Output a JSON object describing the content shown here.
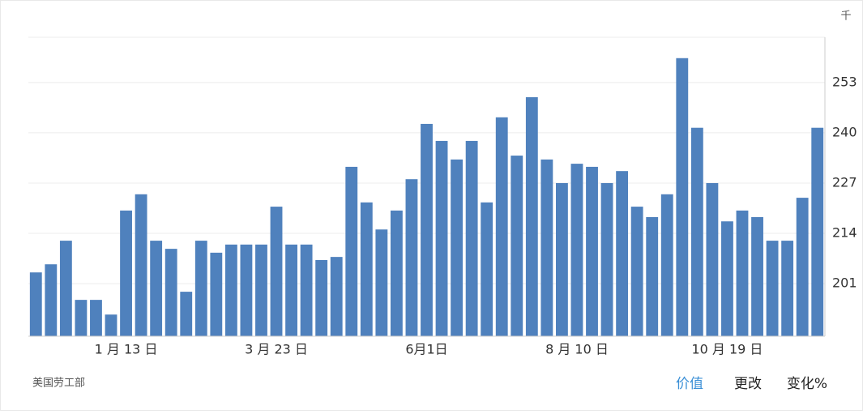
{
  "chart_data": {
    "type": "bar",
    "unit": "千",
    "source": "美国劳工部",
    "tabs": [
      "价值",
      "更改",
      "变化%"
    ],
    "color": "#4f81bd",
    "categories": [
      null,
      null,
      null,
      null,
      null,
      null,
      "1 月 13 日",
      null,
      null,
      null,
      null,
      null,
      null,
      null,
      null,
      null,
      "3 月 23 日",
      null,
      null,
      null,
      null,
      null,
      null,
      null,
      null,
      null,
      "6月1日",
      null,
      null,
      null,
      null,
      null,
      null,
      null,
      null,
      null,
      "8 月 10 日",
      null,
      null,
      null,
      null,
      null,
      null,
      null,
      null,
      null,
      "10 月 19 日",
      null,
      null,
      null,
      null,
      null,
      null
    ],
    "values": [
      203.9,
      206.0,
      212.1,
      196.8,
      196.8,
      193.0,
      219.9,
      224.1,
      212.1,
      210.0,
      198.9,
      212.1,
      209.0,
      211.1,
      211.1,
      211.1,
      220.9,
      211.1,
      211.1,
      207.1,
      207.9,
      231.2,
      222.0,
      215.0,
      219.9,
      228.0,
      242.3,
      237.9,
      233.1,
      237.9,
      222.0,
      244.0,
      234.1,
      249.2,
      233.1,
      227.0,
      232.0,
      231.2,
      227.0,
      230.1,
      220.9,
      218.2,
      224.1,
      259.3,
      241.3,
      227.0,
      217.1,
      219.9,
      218.2,
      212.1,
      212.1,
      223.2,
      241.3
    ],
    "ylim": [
      187.4,
      264.7
    ],
    "yticks": [
      201,
      214,
      227,
      240,
      253
    ],
    "grid": true
  }
}
